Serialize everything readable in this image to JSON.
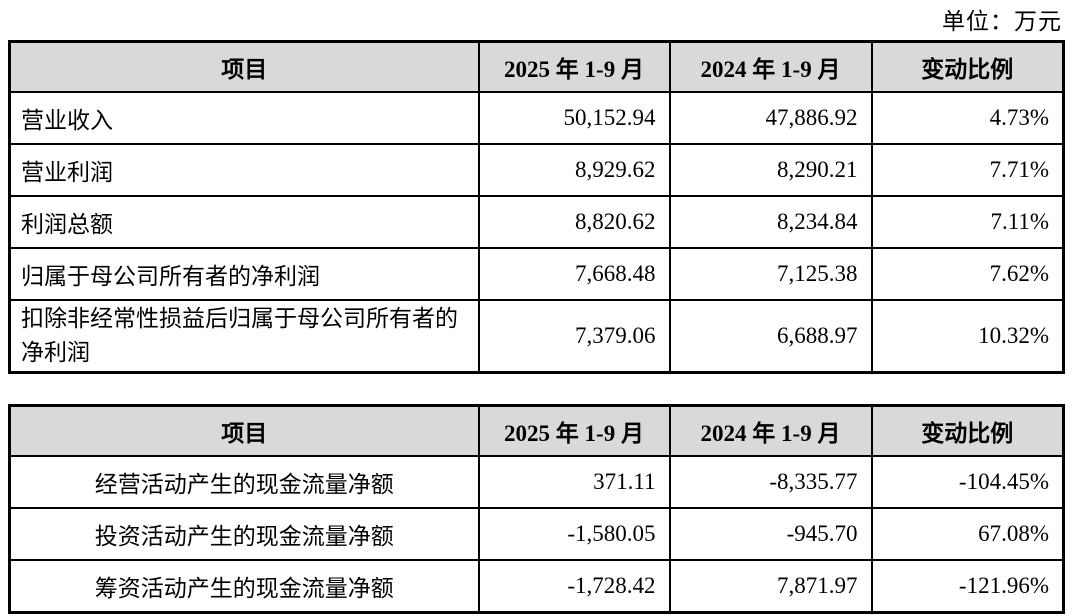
{
  "unit_label": "单位：万元",
  "colors": {
    "header_bg": "#d9d9d9",
    "border": "#000000",
    "text": "#000000"
  },
  "profit_table": {
    "headers": {
      "item": "项目",
      "period_2025": "2025 年 1-9 月",
      "period_2024": "2024 年 1-9 月",
      "change": "变动比例"
    },
    "rows": [
      {
        "item": "营业收入",
        "v2025": "50,152.94",
        "v2024": "47,886.92",
        "change": "4.73%"
      },
      {
        "item": "营业利润",
        "v2025": "8,929.62",
        "v2024": "8,290.21",
        "change": "7.71%"
      },
      {
        "item": "利润总额",
        "v2025": "8,820.62",
        "v2024": "8,234.84",
        "change": "7.11%"
      },
      {
        "item": "归属于母公司所有者的净利润",
        "v2025": "7,668.48",
        "v2024": "7,125.38",
        "change": "7.62%"
      },
      {
        "item": "扣除非经常性损益后归属于母公司所有者的净利润",
        "v2025": "7,379.06",
        "v2024": "6,688.97",
        "change": "10.32%"
      }
    ]
  },
  "cashflow_table": {
    "headers": {
      "item": "项目",
      "period_2025": "2025 年 1-9 月",
      "period_2024": "2024 年 1-9 月",
      "change": "变动比例"
    },
    "rows": [
      {
        "item": "经营活动产生的现金流量净额",
        "v2025": "371.11",
        "v2024": "-8,335.77",
        "change": "-104.45%"
      },
      {
        "item": "投资活动产生的现金流量净额",
        "v2025": "-1,580.05",
        "v2024": "-945.70",
        "change": "67.08%"
      },
      {
        "item": "筹资活动产生的现金流量净额",
        "v2025": "-1,728.42",
        "v2024": "7,871.97",
        "change": "-121.96%"
      }
    ]
  }
}
